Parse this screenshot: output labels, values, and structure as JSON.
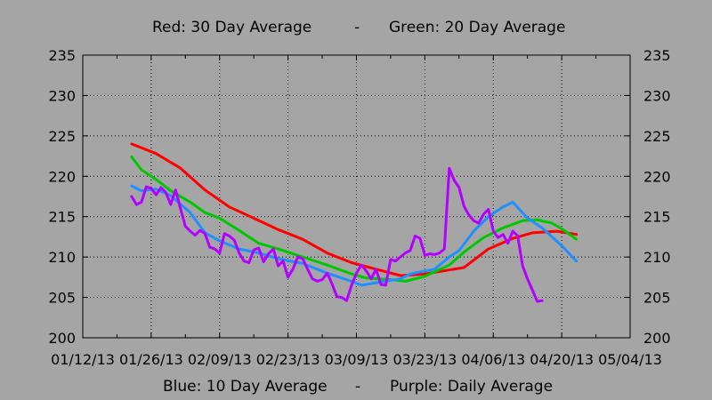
{
  "chart_data": {
    "type": "line",
    "legend_top": {
      "left": "Red: 30 Day Average",
      "sep": "-",
      "right": "Green: 20 Day Average"
    },
    "legend_bottom": {
      "left": "Blue: 10 Day Average",
      "sep": "-",
      "right": "Purple: Daily Average"
    },
    "x_ticks": [
      "01/12/13",
      "01/26/13",
      "02/09/13",
      "02/23/13",
      "03/09/13",
      "03/23/13",
      "04/06/13",
      "04/20/13",
      "05/04/13"
    ],
    "x_tick_days": [
      0,
      14,
      28,
      42,
      56,
      70,
      84,
      98,
      112
    ],
    "y_ticks": [
      200,
      205,
      210,
      215,
      220,
      225,
      230,
      235
    ],
    "xlim_days": [
      0,
      112
    ],
    "ylim": [
      200,
      235
    ],
    "grid": true,
    "series": [
      {
        "color": "#ff0000",
        "points": [
          [
            10,
            224
          ],
          [
            15,
            222.8
          ],
          [
            20,
            221
          ],
          [
            25,
            218.3
          ],
          [
            30,
            216.2
          ],
          [
            35,
            214.8
          ],
          [
            40,
            213.4
          ],
          [
            45,
            212.2
          ],
          [
            50,
            210.5
          ],
          [
            55,
            209.3
          ],
          [
            60,
            208.5
          ],
          [
            65,
            207.7
          ],
          [
            70,
            207.9
          ],
          [
            75,
            208.4
          ],
          [
            78,
            208.7
          ],
          [
            83,
            211
          ],
          [
            88,
            212.3
          ],
          [
            92,
            213
          ],
          [
            97,
            213.2
          ],
          [
            101,
            212.8
          ]
        ]
      },
      {
        "color": "#00c800",
        "points": [
          [
            10,
            222.4
          ],
          [
            12,
            220.8
          ],
          [
            15,
            219.6
          ],
          [
            18,
            218.2
          ],
          [
            22,
            216.8
          ],
          [
            25,
            215.5
          ],
          [
            28,
            214.8
          ],
          [
            32,
            213.3
          ],
          [
            36,
            211.7
          ],
          [
            40,
            211
          ],
          [
            45,
            210
          ],
          [
            50,
            209
          ],
          [
            55,
            207.9
          ],
          [
            58,
            207.4
          ],
          [
            63,
            207.2
          ],
          [
            66,
            207
          ],
          [
            70,
            207.6
          ],
          [
            75,
            209
          ],
          [
            78,
            210.6
          ],
          [
            82,
            212.4
          ],
          [
            86,
            213.6
          ],
          [
            90,
            214.5
          ],
          [
            93,
            214.6
          ],
          [
            96,
            214.2
          ],
          [
            98,
            213.5
          ],
          [
            101,
            212.2
          ]
        ]
      },
      {
        "color": "#1e90ff",
        "points": [
          [
            10,
            218.8
          ],
          [
            12,
            218.2
          ],
          [
            15,
            218.4
          ],
          [
            18,
            217.6
          ],
          [
            22,
            215.5
          ],
          [
            25,
            213
          ],
          [
            28,
            212
          ],
          [
            32,
            211
          ],
          [
            36,
            210.5
          ],
          [
            40,
            209.8
          ],
          [
            45,
            209.2
          ],
          [
            50,
            208
          ],
          [
            55,
            207
          ],
          [
            57,
            206.5
          ],
          [
            62,
            207
          ],
          [
            65,
            207.3
          ],
          [
            67,
            207.9
          ],
          [
            72,
            208.5
          ],
          [
            75,
            210
          ],
          [
            77,
            210.8
          ],
          [
            80,
            213.2
          ],
          [
            83,
            215
          ],
          [
            86,
            216.2
          ],
          [
            88,
            216.8
          ],
          [
            91,
            214.8
          ],
          [
            94,
            213.6
          ],
          [
            98,
            211.4
          ],
          [
            101,
            209.5
          ]
        ]
      },
      {
        "color": "#b400ff",
        "points": [
          [
            10,
            217.5
          ],
          [
            11,
            216.5
          ],
          [
            12,
            216.8
          ],
          [
            13,
            218.7
          ],
          [
            14,
            218.5
          ],
          [
            15,
            217.7
          ],
          [
            16,
            218.6
          ],
          [
            17,
            218
          ],
          [
            18,
            216.5
          ],
          [
            19,
            218.3
          ],
          [
            20,
            216
          ],
          [
            21,
            213.8
          ],
          [
            22,
            213.2
          ],
          [
            23,
            212.7
          ],
          [
            24,
            213.3
          ],
          [
            25,
            212.9
          ],
          [
            26,
            211.2
          ],
          [
            27,
            211
          ],
          [
            28,
            210.5
          ],
          [
            29,
            212.9
          ],
          [
            30,
            212.6
          ],
          [
            31,
            212.1
          ],
          [
            32,
            210.5
          ],
          [
            33,
            209.5
          ],
          [
            34,
            209.3
          ],
          [
            35,
            210.9
          ],
          [
            36,
            211.1
          ],
          [
            37,
            209.4
          ],
          [
            38,
            210.4
          ],
          [
            39,
            211
          ],
          [
            40,
            208.9
          ],
          [
            41,
            209.5
          ],
          [
            42,
            207.5
          ],
          [
            43,
            208.5
          ],
          [
            44,
            210
          ],
          [
            45,
            209.8
          ],
          [
            46,
            208.5
          ],
          [
            47,
            207.3
          ],
          [
            48,
            207
          ],
          [
            49,
            207.2
          ],
          [
            50,
            208
          ],
          [
            51,
            206.7
          ],
          [
            52,
            205.1
          ],
          [
            53,
            205
          ],
          [
            54,
            204.6
          ],
          [
            55,
            206.5
          ],
          [
            56,
            208
          ],
          [
            57,
            209
          ],
          [
            58,
            208.3
          ],
          [
            59,
            207.3
          ],
          [
            60,
            208.5
          ],
          [
            61,
            206.6
          ],
          [
            62,
            206.5
          ],
          [
            63,
            209.7
          ],
          [
            64,
            209.5
          ],
          [
            65,
            210
          ],
          [
            66,
            210.5
          ],
          [
            67,
            210.8
          ],
          [
            68,
            212.6
          ],
          [
            69,
            212.3
          ],
          [
            70,
            210.2
          ],
          [
            71,
            210.4
          ],
          [
            72,
            210.3
          ],
          [
            73,
            210.5
          ],
          [
            74,
            211
          ],
          [
            75,
            221
          ],
          [
            76,
            219.5
          ],
          [
            77,
            218.6
          ],
          [
            78,
            216.3
          ],
          [
            79,
            215.2
          ],
          [
            80,
            214.5
          ],
          [
            81,
            214.2
          ],
          [
            82,
            215.3
          ],
          [
            83,
            215.9
          ],
          [
            84,
            213.2
          ],
          [
            85,
            212.4
          ],
          [
            86,
            212.8
          ],
          [
            87,
            211.7
          ],
          [
            88,
            213.2
          ],
          [
            89,
            212.6
          ],
          [
            90,
            208.9
          ],
          [
            91,
            207.3
          ],
          [
            92,
            205.9
          ],
          [
            93,
            204.5
          ],
          [
            94,
            204.6
          ]
        ]
      }
    ]
  }
}
